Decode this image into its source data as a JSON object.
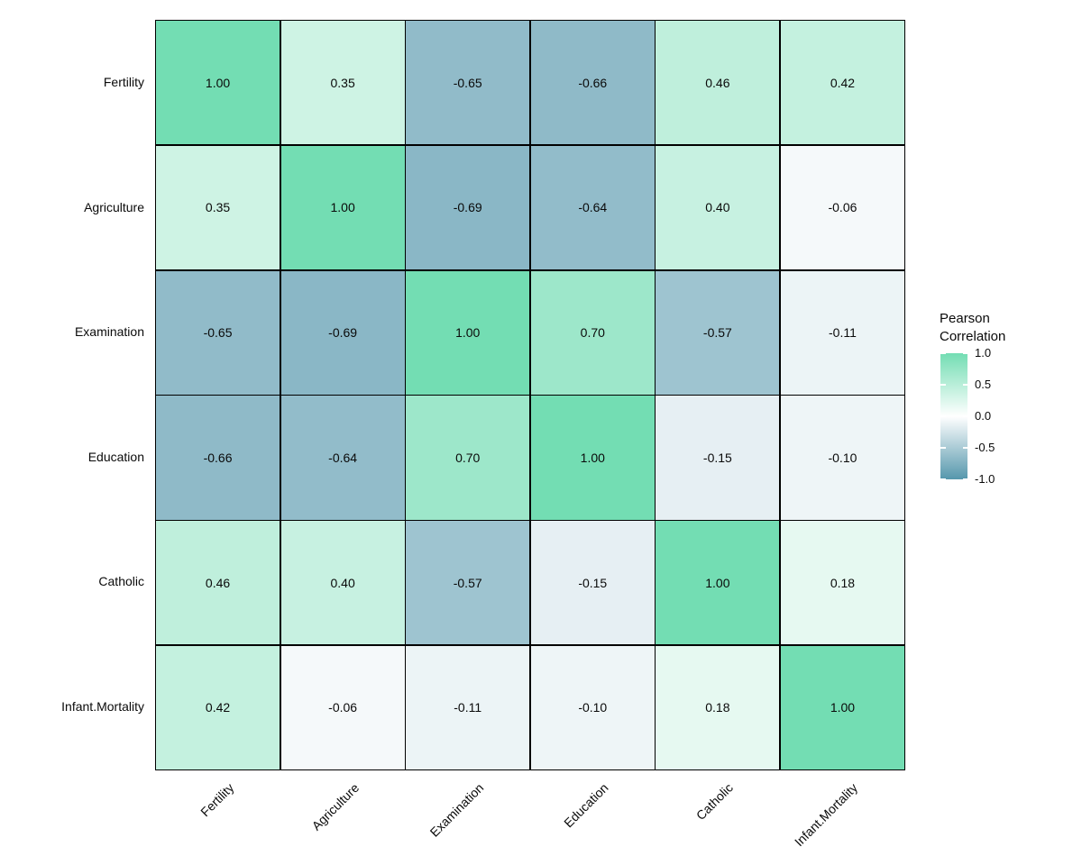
{
  "chart_data": {
    "type": "heatmap",
    "title": "",
    "variables": [
      "Fertility",
      "Agriculture",
      "Examination",
      "Education",
      "Catholic",
      "Infant.Mortality"
    ],
    "matrix": [
      [
        1.0,
        0.35,
        -0.65,
        -0.66,
        0.46,
        0.42
      ],
      [
        0.35,
        1.0,
        -0.69,
        -0.64,
        0.4,
        -0.06
      ],
      [
        -0.65,
        -0.69,
        1.0,
        0.7,
        -0.57,
        -0.11
      ],
      [
        -0.66,
        -0.64,
        0.7,
        1.0,
        -0.15,
        -0.1
      ],
      [
        0.46,
        0.4,
        -0.57,
        -0.15,
        1.0,
        0.18
      ],
      [
        0.42,
        -0.06,
        -0.11,
        -0.1,
        0.18,
        1.0
      ]
    ],
    "value_decimals": 2,
    "legend": {
      "title": "Pearson Correlation",
      "ticks": [
        "1.0",
        "0.5",
        "0.0",
        "-0.5",
        "-1.0"
      ],
      "tick_values": [
        1.0,
        0.5,
        0.0,
        -0.5,
        -1.0
      ],
      "range": [
        -1.0,
        1.0
      ],
      "position": "right"
    },
    "colors": {
      "high": "#73DDB3",
      "mid": "#FFFFFF",
      "low": "#5597AC",
      "grid_line": "#000000",
      "text": "#0A0A0A",
      "background": "#FFFFFF"
    },
    "layout_hints": {
      "x_label_rotation_deg": 45,
      "grid_on": false,
      "cell_borders": true
    }
  }
}
